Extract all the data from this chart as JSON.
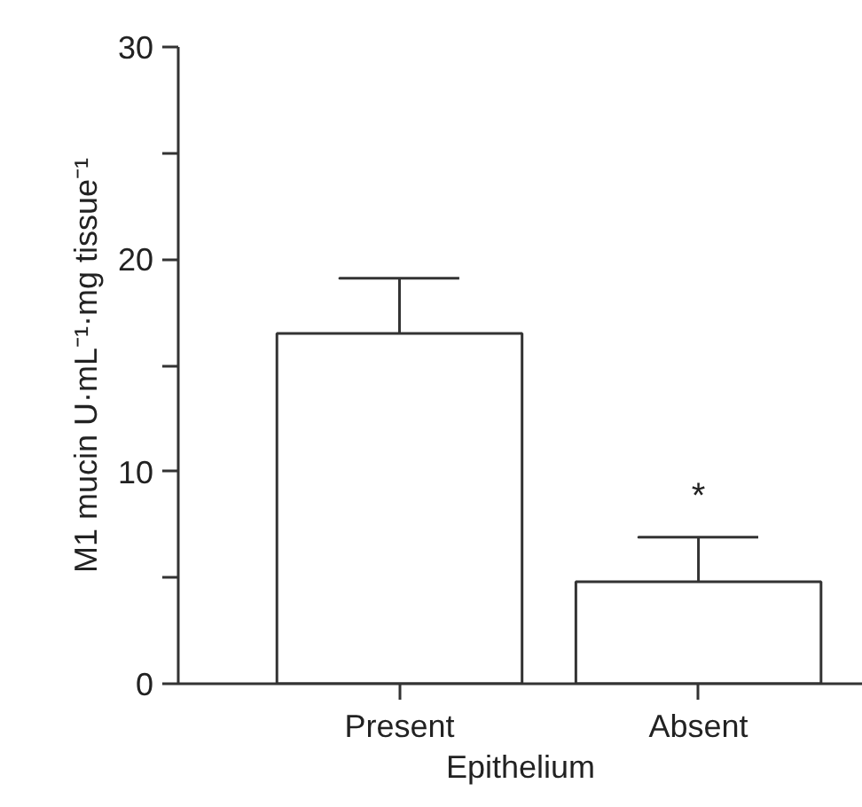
{
  "chart_data": {
    "type": "bar",
    "xlabel": "Epithelium",
    "ylabel": "M1 mucin U·mL⁻¹·mg tissue⁻¹",
    "categories": [
      "Present",
      "Absent"
    ],
    "values": [
      16.5,
      4.8
    ],
    "errors": [
      [
        16.5,
        19.1
      ],
      [
        4.8,
        6.9
      ]
    ],
    "color": "#ffffff",
    "ylim": [
      0,
      30
    ],
    "yticks": [
      0,
      {
        "value": 5,
        "label": null
      },
      10,
      {
        "value": 15,
        "label": null
      },
      20,
      {
        "value": 25,
        "label": null
      },
      30
    ],
    "annotations": [
      "*"
    ],
    "grid": false
  }
}
